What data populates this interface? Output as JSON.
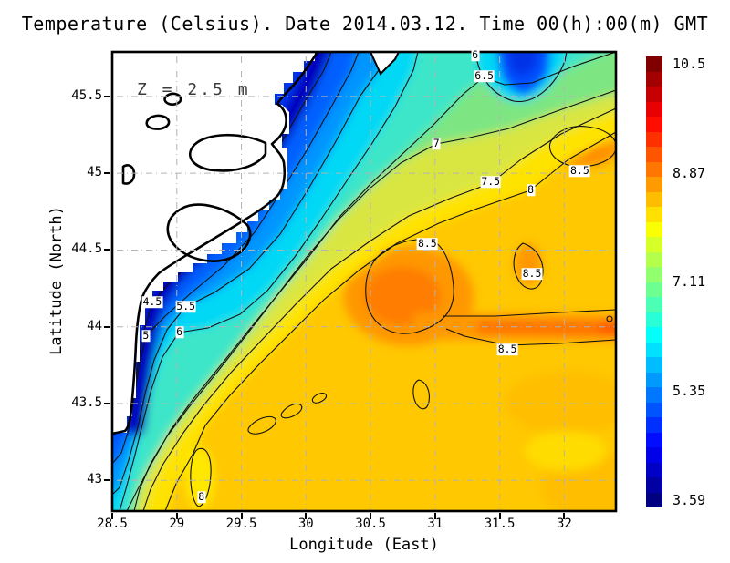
{
  "title": "Temperature (Celsius). Date 2014.03.12. Time 00(h):00(m) GMT",
  "annotation": "Z = 2.5 m",
  "axes": {
    "x": {
      "label": "Longitude (East)",
      "tick_labels": [
        "28.5",
        "29",
        "29.5",
        "30",
        "30.5",
        "31",
        "31.5",
        "32"
      ]
    },
    "y": {
      "label": "Latitude (North)",
      "tick_labels": [
        "45.5",
        "45",
        "44.5",
        "44",
        "43.5",
        "43"
      ]
    }
  },
  "colorbar": {
    "labels": [
      "10.5",
      "8.87",
      "7.11",
      "5.35",
      "3.59"
    ],
    "tick_values": [
      10.5,
      8.87,
      7.11,
      5.35,
      3.59
    ],
    "colormap": "jet",
    "segments": 30
  },
  "chart_data": {
    "type": "heatmap",
    "title": "Temperature (Celsius). Date 2014.03.12. Time 00(h):00(m) GMT",
    "variable": "Temperature",
    "units": "Celsius",
    "date": "2014.03.12",
    "time": "00(h):00(m) GMT",
    "depth_m": 2.5,
    "xlabel": "Longitude (East)",
    "ylabel": "Latitude (North)",
    "xlim": [
      28.5,
      32.4
    ],
    "ylim": [
      42.8,
      45.79
    ],
    "xticks": [
      28.5,
      29,
      29.5,
      30,
      30.5,
      31,
      31.5,
      32
    ],
    "yticks": [
      45.5,
      45,
      44.5,
      44,
      43.5,
      43
    ],
    "value_range": [
      3.59,
      10.5
    ],
    "contour_levels": [
      4.5,
      5,
      5.5,
      6,
      6.5,
      7,
      7.5,
      8,
      8.5
    ],
    "grid": true,
    "legend_position": "right-colorbar",
    "land_color": "#ffffff",
    "coastline_color": "#000000",
    "contour_labels": [
      {
        "text": "6",
        "lon": 31.31,
        "lat": 45.78
      },
      {
        "text": "6.5",
        "lon": 31.38,
        "lat": 45.63
      },
      {
        "text": "7",
        "lon": 31.01,
        "lat": 45.19
      },
      {
        "text": "7.5",
        "lon": 31.43,
        "lat": 44.94
      },
      {
        "text": "8",
        "lon": 31.74,
        "lat": 44.89
      },
      {
        "text": "8.5",
        "lon": 32.12,
        "lat": 45.01
      },
      {
        "text": "8.5",
        "lon": 30.94,
        "lat": 44.54
      },
      {
        "text": "8.5",
        "lon": 31.75,
        "lat": 44.34
      },
      {
        "text": "8.5",
        "lon": 31.56,
        "lat": 43.85
      },
      {
        "text": "4.5",
        "lon": 28.81,
        "lat": 44.16
      },
      {
        "text": "5.5",
        "lon": 29.07,
        "lat": 44.13
      },
      {
        "text": "5",
        "lon": 28.76,
        "lat": 43.94
      },
      {
        "text": "6",
        "lon": 29.02,
        "lat": 43.96
      },
      {
        "text": "8",
        "lon": 29.19,
        "lat": 42.89
      }
    ],
    "features": [
      {
        "name": "cold coastal water",
        "approx_temp_c": 4.0,
        "location": "western shelf along coast"
      },
      {
        "name": "warm core eddy",
        "approx_temp_c": 9.0,
        "location": "30.9E 44.6N"
      },
      {
        "name": "warm eddy",
        "approx_temp_c": 8.7,
        "location": "32.1E 45.1N"
      },
      {
        "name": "warm band",
        "approx_temp_c": 9.0,
        "location": "44.0N extending to east edge"
      }
    ]
  }
}
